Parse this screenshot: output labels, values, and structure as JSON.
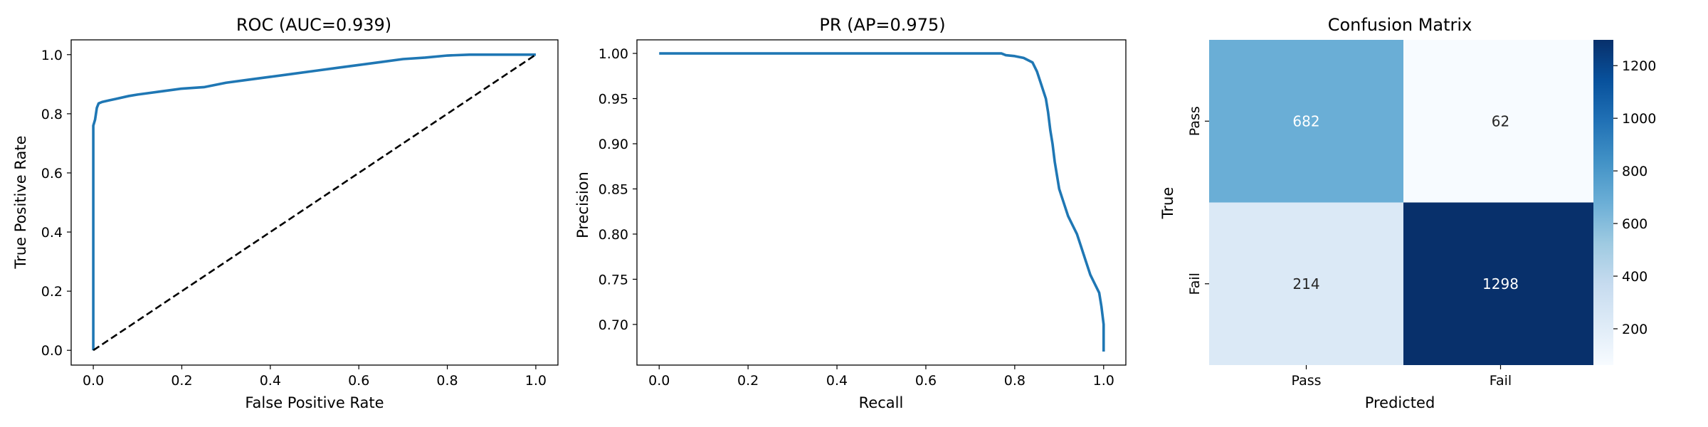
{
  "chart_data": [
    {
      "type": "line",
      "title": "ROC (AUC=0.939)",
      "xlabel": "False Positive Rate",
      "ylabel": "True Positive Rate",
      "xlim": [
        -0.05,
        1.05
      ],
      "ylim": [
        -0.05,
        1.05
      ],
      "xticks": [
        "0.0",
        "0.2",
        "0.4",
        "0.6",
        "0.8",
        "1.0"
      ],
      "yticks": [
        "0.0",
        "0.2",
        "0.4",
        "0.6",
        "0.8",
        "1.0"
      ],
      "grid": false,
      "series": [
        {
          "color": "#1f77b4",
          "x": [
            0,
            0,
            0.002,
            0.004,
            0.006,
            0.008,
            0.012,
            0.02,
            0.035,
            0.05,
            0.08,
            0.1,
            0.15,
            0.2,
            0.25,
            0.3,
            0.35,
            0.4,
            0.45,
            0.5,
            0.55,
            0.6,
            0.65,
            0.7,
            0.75,
            0.8,
            0.85,
            0.9,
            0.95,
            1.0
          ],
          "y": [
            0,
            0.76,
            0.77,
            0.78,
            0.8,
            0.82,
            0.835,
            0.84,
            0.845,
            0.85,
            0.86,
            0.865,
            0.875,
            0.885,
            0.89,
            0.905,
            0.915,
            0.925,
            0.935,
            0.945,
            0.955,
            0.965,
            0.975,
            0.985,
            0.99,
            0.997,
            1.0,
            1.0,
            1.0,
            1.0
          ]
        },
        {
          "color": "#000000",
          "style": "dashed",
          "x": [
            0,
            1
          ],
          "y": [
            0,
            1
          ]
        }
      ]
    },
    {
      "type": "line",
      "title": "PR (AP=0.975)",
      "xlabel": "Recall",
      "ylabel": "Precision",
      "xlim": [
        -0.05,
        1.05
      ],
      "ylim": [
        0.655,
        1.015
      ],
      "xticks": [
        "0.0",
        "0.2",
        "0.4",
        "0.6",
        "0.8",
        "1.0"
      ],
      "yticks": [
        "0.70",
        "0.75",
        "0.80",
        "0.85",
        "0.90",
        "0.95",
        "1.00"
      ],
      "grid": false,
      "series": [
        {
          "color": "#1f77b4",
          "x": [
            0,
            0.5,
            0.77,
            0.78,
            0.8,
            0.82,
            0.84,
            0.85,
            0.86,
            0.87,
            0.875,
            0.88,
            0.885,
            0.89,
            0.895,
            0.9,
            0.91,
            0.92,
            0.93,
            0.94,
            0.95,
            0.96,
            0.97,
            0.98,
            0.99,
            0.995,
            1.0,
            1.0
          ],
          "y": [
            1.0,
            1.0,
            1.0,
            0.998,
            0.997,
            0.995,
            0.99,
            0.98,
            0.965,
            0.95,
            0.935,
            0.915,
            0.9,
            0.88,
            0.865,
            0.85,
            0.835,
            0.82,
            0.81,
            0.8,
            0.785,
            0.77,
            0.755,
            0.745,
            0.735,
            0.72,
            0.7,
            0.67
          ]
        }
      ]
    },
    {
      "type": "heatmap",
      "title": "Confusion Matrix",
      "xlabel": "Predicted",
      "ylabel": "True",
      "x_categories": [
        "Pass",
        "Fail"
      ],
      "y_categories": [
        "Pass",
        "Fail"
      ],
      "values": [
        [
          682,
          62
        ],
        [
          214,
          1298
        ]
      ],
      "colormap": "Blues",
      "colorbar_ticks": [
        200,
        400,
        600,
        800,
        1000,
        1200
      ],
      "colorbar_range": [
        62,
        1298
      ],
      "cell_colors": [
        [
          "#6aaed6",
          "#f7fbff"
        ],
        [
          "#dbe9f6",
          "#08306b"
        ]
      ],
      "colorbar_stops": [
        "#f7fbff",
        "#deebf7",
        "#c6dbef",
        "#9ecae1",
        "#6baed6",
        "#4292c6",
        "#2171b5",
        "#08519c",
        "#08306b"
      ]
    }
  ]
}
